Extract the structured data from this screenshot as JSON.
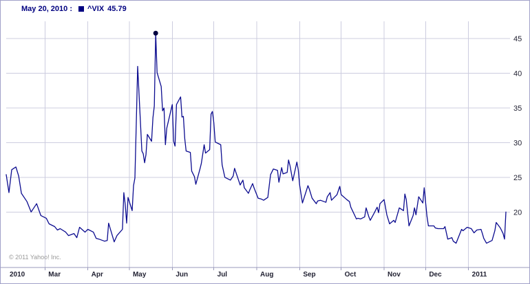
{
  "header": {
    "date_label": "May 20, 2010 :",
    "symbol": "^VIX",
    "price": "45.79"
  },
  "footer": {
    "copyright": "© 2011 Yahoo! Inc."
  },
  "colors": {
    "line": "#0b0b8f",
    "grid": "#ccccdf",
    "axis": "#9999bb",
    "marker": "#000040",
    "header_text": "#000080",
    "tick_text": "#222233",
    "border": "#a0a0c8",
    "copyright_text": "#999999"
  },
  "chart_data": {
    "type": "line",
    "title": "^VIX (CBOE Volatility Index) daily close, Feb 2010 - Jan 2011",
    "xlabel": "",
    "ylabel": "",
    "legend_position": "top-left",
    "grid": true,
    "x_domain": [
      "2010-02-01",
      "2011-01-31"
    ],
    "ylim": [
      12,
      47.5
    ],
    "y_ticks": [
      20,
      25,
      30,
      35,
      40,
      45
    ],
    "x_ticks": [
      {
        "date": "2010-02-01",
        "label": "2010"
      },
      {
        "date": "2010-03-01",
        "label": "Mar"
      },
      {
        "date": "2010-04-01",
        "label": "Apr"
      },
      {
        "date": "2010-05-01",
        "label": "May"
      },
      {
        "date": "2010-06-01",
        "label": "Jun"
      },
      {
        "date": "2010-07-01",
        "label": "Jul"
      },
      {
        "date": "2010-08-01",
        "label": "Aug"
      },
      {
        "date": "2010-09-01",
        "label": "Sep"
      },
      {
        "date": "2010-10-01",
        "label": "Oct"
      },
      {
        "date": "2010-11-01",
        "label": "Nov"
      },
      {
        "date": "2010-12-01",
        "label": "Dec"
      },
      {
        "date": "2011-01-01",
        "label": "2011"
      }
    ],
    "marker": {
      "date": "2010-05-20",
      "value": 45.79
    },
    "series": [
      {
        "name": "^VIX",
        "points": [
          [
            "2010-02-01",
            25.4
          ],
          [
            "2010-02-03",
            22.8
          ],
          [
            "2010-02-05",
            26.1
          ],
          [
            "2010-02-08",
            26.5
          ],
          [
            "2010-02-10",
            25.2
          ],
          [
            "2010-02-12",
            22.7
          ],
          [
            "2010-02-16",
            21.5
          ],
          [
            "2010-02-19",
            20.0
          ],
          [
            "2010-02-23",
            21.2
          ],
          [
            "2010-02-26",
            19.5
          ],
          [
            "2010-03-02",
            19.1
          ],
          [
            "2010-03-04",
            18.3
          ],
          [
            "2010-03-08",
            17.9
          ],
          [
            "2010-03-10",
            17.4
          ],
          [
            "2010-03-12",
            17.6
          ],
          [
            "2010-03-16",
            17.1
          ],
          [
            "2010-03-18",
            16.6
          ],
          [
            "2010-03-22",
            16.9
          ],
          [
            "2010-03-24",
            16.3
          ],
          [
            "2010-03-26",
            17.8
          ],
          [
            "2010-03-30",
            17.1
          ],
          [
            "2010-04-01",
            17.5
          ],
          [
            "2010-04-05",
            17.1
          ],
          [
            "2010-04-07",
            16.2
          ],
          [
            "2010-04-09",
            16.1
          ],
          [
            "2010-04-13",
            15.8
          ],
          [
            "2010-04-15",
            15.9
          ],
          [
            "2010-04-16",
            18.4
          ],
          [
            "2010-04-20",
            15.7
          ],
          [
            "2010-04-22",
            16.6
          ],
          [
            "2010-04-26",
            17.5
          ],
          [
            "2010-04-27",
            22.8
          ],
          [
            "2010-04-28",
            21.1
          ],
          [
            "2010-04-29",
            18.4
          ],
          [
            "2010-04-30",
            22.1
          ],
          [
            "2010-05-03",
            20.2
          ],
          [
            "2010-05-04",
            23.8
          ],
          [
            "2010-05-05",
            24.9
          ],
          [
            "2010-05-06",
            32.8
          ],
          [
            "2010-05-07",
            41.0
          ],
          [
            "2010-05-10",
            28.8
          ],
          [
            "2010-05-11",
            28.4
          ],
          [
            "2010-05-12",
            27.1
          ],
          [
            "2010-05-13",
            28.3
          ],
          [
            "2010-05-14",
            31.2
          ],
          [
            "2010-05-17",
            30.2
          ],
          [
            "2010-05-18",
            33.6
          ],
          [
            "2010-05-19",
            35.3
          ],
          [
            "2010-05-20",
            45.79
          ],
          [
            "2010-05-21",
            40.1
          ],
          [
            "2010-05-24",
            38.1
          ],
          [
            "2010-05-25",
            34.6
          ],
          [
            "2010-05-26",
            35.0
          ],
          [
            "2010-05-27",
            29.7
          ],
          [
            "2010-05-28",
            32.1
          ],
          [
            "2010-06-01",
            35.5
          ],
          [
            "2010-06-02",
            30.2
          ],
          [
            "2010-06-03",
            29.5
          ],
          [
            "2010-06-04",
            35.5
          ],
          [
            "2010-06-07",
            36.6
          ],
          [
            "2010-06-08",
            33.7
          ],
          [
            "2010-06-09",
            33.8
          ],
          [
            "2010-06-10",
            30.6
          ],
          [
            "2010-06-11",
            28.8
          ],
          [
            "2010-06-14",
            28.6
          ],
          [
            "2010-06-15",
            25.9
          ],
          [
            "2010-06-17",
            25.1
          ],
          [
            "2010-06-18",
            24.0
          ],
          [
            "2010-06-21",
            26.2
          ],
          [
            "2010-06-22",
            27.0
          ],
          [
            "2010-06-24",
            29.7
          ],
          [
            "2010-06-25",
            28.5
          ],
          [
            "2010-06-28",
            29.0
          ],
          [
            "2010-06-29",
            34.1
          ],
          [
            "2010-06-30",
            34.5
          ],
          [
            "2010-07-01",
            32.9
          ],
          [
            "2010-07-02",
            30.1
          ],
          [
            "2010-07-06",
            29.7
          ],
          [
            "2010-07-07",
            26.8
          ],
          [
            "2010-07-09",
            25.0
          ],
          [
            "2010-07-13",
            24.6
          ],
          [
            "2010-07-15",
            25.2
          ],
          [
            "2010-07-16",
            26.3
          ],
          [
            "2010-07-20",
            23.9
          ],
          [
            "2010-07-22",
            24.6
          ],
          [
            "2010-07-23",
            23.5
          ],
          [
            "2010-07-26",
            22.7
          ],
          [
            "2010-07-27",
            23.2
          ],
          [
            "2010-07-29",
            24.1
          ],
          [
            "2010-07-30",
            23.5
          ],
          [
            "2010-08-02",
            22.0
          ],
          [
            "2010-08-04",
            21.9
          ],
          [
            "2010-08-06",
            21.7
          ],
          [
            "2010-08-09",
            22.1
          ],
          [
            "2010-08-11",
            25.4
          ],
          [
            "2010-08-13",
            26.2
          ],
          [
            "2010-08-16",
            26.0
          ],
          [
            "2010-08-17",
            24.3
          ],
          [
            "2010-08-19",
            26.4
          ],
          [
            "2010-08-20",
            25.5
          ],
          [
            "2010-08-23",
            25.7
          ],
          [
            "2010-08-24",
            27.5
          ],
          [
            "2010-08-25",
            26.7
          ],
          [
            "2010-08-27",
            24.5
          ],
          [
            "2010-08-30",
            27.2
          ],
          [
            "2010-08-31",
            26.1
          ],
          [
            "2010-09-01",
            23.9
          ],
          [
            "2010-09-03",
            21.3
          ],
          [
            "2010-09-07",
            23.8
          ],
          [
            "2010-09-08",
            23.3
          ],
          [
            "2010-09-10",
            22.0
          ],
          [
            "2010-09-13",
            21.2
          ],
          [
            "2010-09-14",
            21.6
          ],
          [
            "2010-09-16",
            21.7
          ],
          [
            "2010-09-20",
            21.4
          ],
          [
            "2010-09-21",
            22.2
          ],
          [
            "2010-09-23",
            22.8
          ],
          [
            "2010-09-24",
            21.7
          ],
          [
            "2010-09-28",
            22.5
          ],
          [
            "2010-09-30",
            23.7
          ],
          [
            "2010-10-01",
            22.5
          ],
          [
            "2010-10-05",
            21.8
          ],
          [
            "2010-10-07",
            21.5
          ],
          [
            "2010-10-08",
            20.7
          ],
          [
            "2010-10-12",
            19.0
          ],
          [
            "2010-10-13",
            19.1
          ],
          [
            "2010-10-15",
            19.0
          ],
          [
            "2010-10-18",
            19.3
          ],
          [
            "2010-10-19",
            20.6
          ],
          [
            "2010-10-21",
            19.3
          ],
          [
            "2010-10-22",
            18.8
          ],
          [
            "2010-10-25",
            19.9
          ],
          [
            "2010-10-27",
            20.7
          ],
          [
            "2010-10-28",
            19.9
          ],
          [
            "2010-10-29",
            21.2
          ],
          [
            "2010-11-01",
            21.8
          ],
          [
            "2010-11-03",
            19.6
          ],
          [
            "2010-11-05",
            18.3
          ],
          [
            "2010-11-08",
            18.8
          ],
          [
            "2010-11-09",
            18.5
          ],
          [
            "2010-11-12",
            20.6
          ],
          [
            "2010-11-15",
            20.2
          ],
          [
            "2010-11-16",
            22.6
          ],
          [
            "2010-11-17",
            21.8
          ],
          [
            "2010-11-19",
            18.0
          ],
          [
            "2010-11-22",
            19.5
          ],
          [
            "2010-11-23",
            20.6
          ],
          [
            "2010-11-24",
            19.6
          ],
          [
            "2010-11-26",
            22.2
          ],
          [
            "2010-11-29",
            21.3
          ],
          [
            "2010-11-30",
            23.5
          ],
          [
            "2010-12-01",
            21.4
          ],
          [
            "2010-12-02",
            19.4
          ],
          [
            "2010-12-03",
            18.0
          ],
          [
            "2010-12-07",
            18.0
          ],
          [
            "2010-12-08",
            17.7
          ],
          [
            "2010-12-10",
            17.6
          ],
          [
            "2010-12-14",
            17.6
          ],
          [
            "2010-12-15",
            17.9
          ],
          [
            "2010-12-17",
            16.1
          ],
          [
            "2010-12-20",
            16.3
          ],
          [
            "2010-12-21",
            15.8
          ],
          [
            "2010-12-23",
            15.5
          ],
          [
            "2010-12-27",
            17.5
          ],
          [
            "2010-12-28",
            17.3
          ],
          [
            "2010-12-31",
            17.8
          ],
          [
            "2011-01-03",
            17.6
          ],
          [
            "2011-01-05",
            17.0
          ],
          [
            "2011-01-07",
            17.4
          ],
          [
            "2011-01-10",
            17.5
          ],
          [
            "2011-01-11",
            16.9
          ],
          [
            "2011-01-12",
            16.2
          ],
          [
            "2011-01-14",
            15.5
          ],
          [
            "2011-01-18",
            15.9
          ],
          [
            "2011-01-20",
            17.3
          ],
          [
            "2011-01-21",
            18.5
          ],
          [
            "2011-01-24",
            17.7
          ],
          [
            "2011-01-26",
            16.9
          ],
          [
            "2011-01-27",
            16.1
          ],
          [
            "2011-01-28",
            20.0
          ]
        ]
      }
    ]
  }
}
